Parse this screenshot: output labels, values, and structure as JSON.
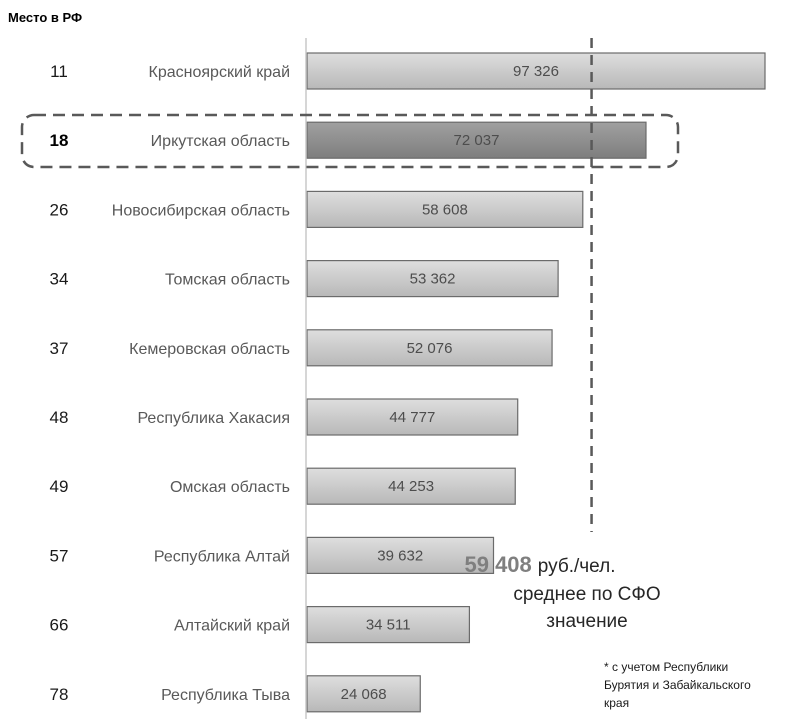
{
  "chart_data": {
    "type": "bar",
    "orientation": "horizontal",
    "rank_header": "Место в РФ",
    "categories": [
      "Красноярский край",
      "Иркутская область",
      "Новосибирская область",
      "Томская область",
      "Кемеровская область",
      "Республика Хакасия",
      "Омская область",
      "Республика Алтай",
      "Алтайский край",
      "Республика Тыва"
    ],
    "ranks": [
      "11",
      "18",
      "26",
      "34",
      "37",
      "48",
      "49",
      "57",
      "66",
      "78"
    ],
    "values": [
      97326,
      72037,
      58608,
      53362,
      52076,
      44777,
      44253,
      39632,
      34511,
      24068
    ],
    "value_labels": [
      "97 326",
      "72 037",
      "58 608",
      "53 362",
      "52 076",
      "44 777",
      "44 253",
      "39 632",
      "34 511",
      "24 068"
    ],
    "highlight_index": 1,
    "xlim": [
      0,
      100000
    ],
    "grid": false,
    "colors": {
      "highlight_bar": "#8c8c8c",
      "bar": "#c6c6c6",
      "bar_stroke": "#6b6b6b",
      "average_line": "#595959",
      "highlight_box": "#595959"
    },
    "average": {
      "value": 59408,
      "value_label": "59 408",
      "unit": "руб./чел.",
      "line2": "среднее по СФО",
      "line3": "значение"
    },
    "footnote": [
      "* с учетом Республики",
      "Бурятия и Забайкальского",
      "края"
    ]
  }
}
